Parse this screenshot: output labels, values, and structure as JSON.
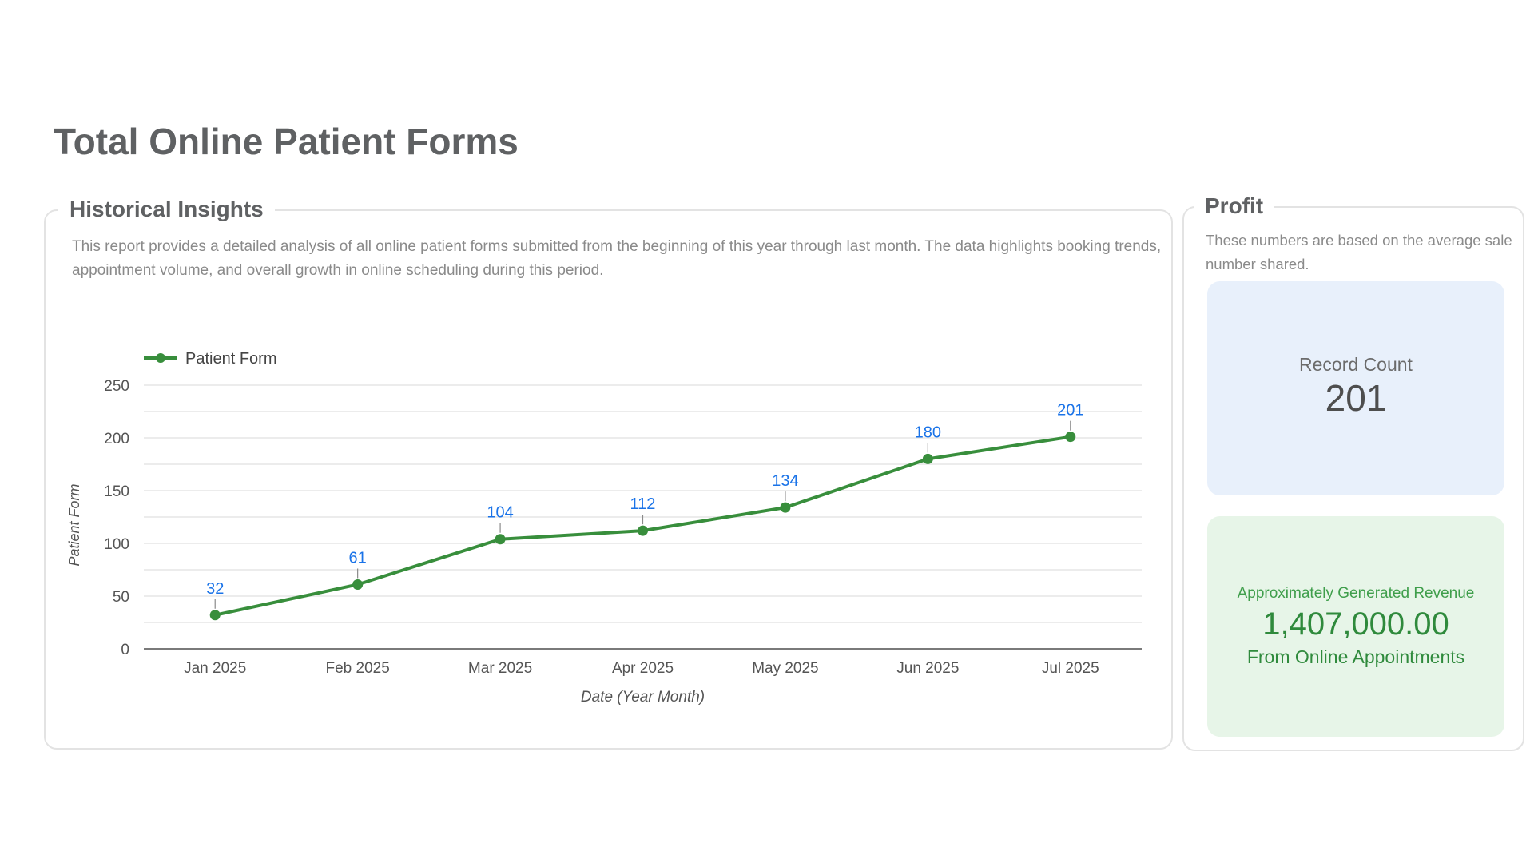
{
  "page": {
    "title": "Total Online Patient Forms"
  },
  "insights": {
    "heading": "Historical Insights",
    "description": "This report provides a detailed analysis of all online patient forms submitted from the beginning of this year through last month. The data highlights booking trends, appointment volume, and overall growth in online scheduling during this period."
  },
  "chart_data": {
    "type": "line",
    "x": [
      "Jan 2025",
      "Feb 2025",
      "Mar 2025",
      "Apr 2025",
      "May 2025",
      "Jun 2025",
      "Jul 2025"
    ],
    "series": [
      {
        "name": "Patient Form",
        "values": [
          32,
          61,
          104,
          112,
          134,
          180,
          201
        ],
        "color": "#388e3c"
      }
    ],
    "xlabel": "Date (Year Month)",
    "ylabel": "Patient Form",
    "ylim": [
      0,
      250
    ],
    "yticks": [
      0,
      50,
      100,
      150,
      200,
      250
    ],
    "data_label_color": "#1a73e8",
    "grid": true,
    "legend": "top-left"
  },
  "profit": {
    "heading": "Profit",
    "description": "These numbers are based on the average sale number shared.",
    "record_count": {
      "label": "Record Count",
      "value": "201"
    },
    "revenue": {
      "label": "Approximately Generated Revenue",
      "value": "1,407,000.00",
      "sub": "From Online Appointments"
    }
  }
}
